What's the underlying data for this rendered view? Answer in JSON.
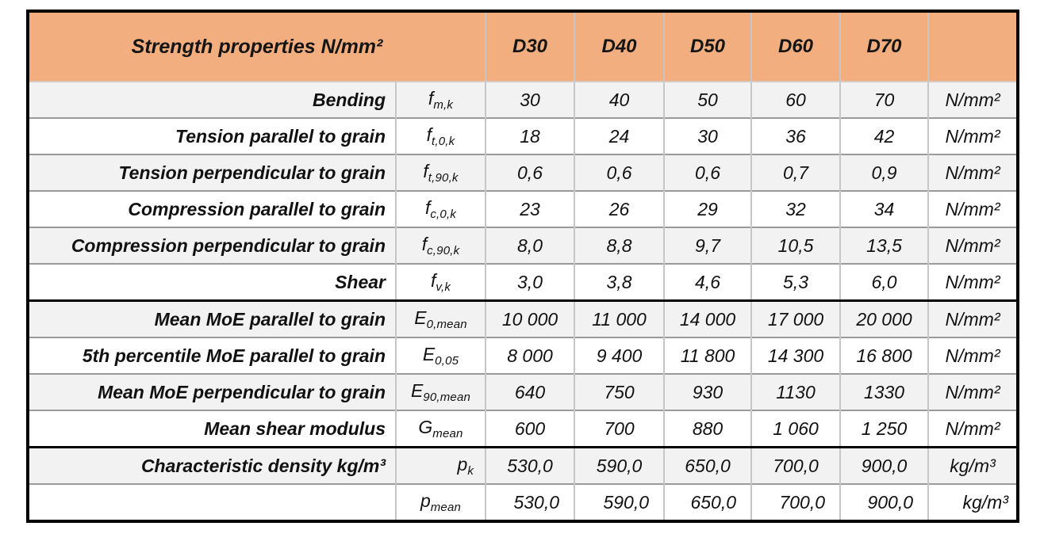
{
  "chart_data": {
    "type": "table",
    "header": {
      "title": "Strength properties N/mm²",
      "class_labels": [
        "D30",
        "D40",
        "D50",
        "D60",
        "D70"
      ],
      "unit_column_label": ""
    },
    "rows": [
      {
        "label": "Bending",
        "symbol": "f",
        "symbol_sub": "m,k",
        "values": [
          "30",
          "40",
          "50",
          "60",
          "70"
        ],
        "unit": "N/mm²"
      },
      {
        "label": "Tension parallel to grain",
        "symbol": "f",
        "symbol_sub": "t,0,k",
        "values": [
          "18",
          "24",
          "30",
          "36",
          "42"
        ],
        "unit": "N/mm²"
      },
      {
        "label": "Tension perpendicular to grain",
        "symbol": "f",
        "symbol_sub": "t,90,k",
        "values": [
          "0,6",
          "0,6",
          "0,6",
          "0,7",
          "0,9"
        ],
        "unit": "N/mm²"
      },
      {
        "label": "Compression parallel to grain",
        "symbol": "f",
        "symbol_sub": "c,0,k",
        "values": [
          "23",
          "26",
          "29",
          "32",
          "34"
        ],
        "unit": "N/mm²"
      },
      {
        "label": "Compression perpendicular to grain",
        "symbol": "f",
        "symbol_sub": "c,90,k",
        "values": [
          "8,0",
          "8,8",
          "9,7",
          "10,5",
          "13,5"
        ],
        "unit": "N/mm²"
      },
      {
        "label": "Shear",
        "symbol": "f",
        "symbol_sub": "v,k",
        "values": [
          "3,0",
          "3,8",
          "4,6",
          "5,3",
          "6,0"
        ],
        "unit": "N/mm²"
      },
      {
        "label": "Mean MoE parallel to grain",
        "symbol": "E",
        "symbol_sub": "0,mean",
        "values": [
          "10 000",
          "11 000",
          "14 000",
          "17 000",
          "20 000"
        ],
        "unit": "N/mm²"
      },
      {
        "label": "5th percentile MoE parallel to grain",
        "symbol": "E",
        "symbol_sub": "0,05",
        "values": [
          "8 000",
          "9 400",
          "11 800",
          "14 300",
          "16 800"
        ],
        "unit": "N/mm²"
      },
      {
        "label": "Mean MoE perpendicular to grain",
        "symbol": "E",
        "symbol_sub": "90,mean",
        "values": [
          "640",
          "750",
          "930",
          "1130",
          "1330"
        ],
        "unit": "N/mm²"
      },
      {
        "label": "Mean shear modulus",
        "symbol": "G",
        "symbol_sub": "mean",
        "values": [
          "600",
          "700",
          "880",
          "1 060",
          "1 250"
        ],
        "unit": "N/mm²"
      },
      {
        "label": "Characteristic density kg/m³",
        "symbol": "p",
        "symbol_sub": "k",
        "values": [
          "530,0",
          "590,0",
          "650,0",
          "700,0",
          "900,0"
        ],
        "unit": "kg/m³"
      },
      {
        "label": "",
        "symbol": "p",
        "symbol_sub": "mean",
        "values": [
          "530,0",
          "590,0",
          "650,0",
          "700,0",
          "900,0"
        ],
        "unit": "kg/m³"
      }
    ],
    "layout": {
      "section_start_rows": [
        6,
        10
      ],
      "row_striping": "odd-rows-shaded",
      "legend": "none",
      "grid": "on"
    }
  },
  "colors": {
    "header_bg": "#F2AE7E",
    "row_shade_bg": "#F2F2F2",
    "row_plain_bg": "#FFFFFF",
    "grid_line": "#9A9A9A",
    "column_line": "#C6C6C6",
    "frame": "#000000"
  }
}
